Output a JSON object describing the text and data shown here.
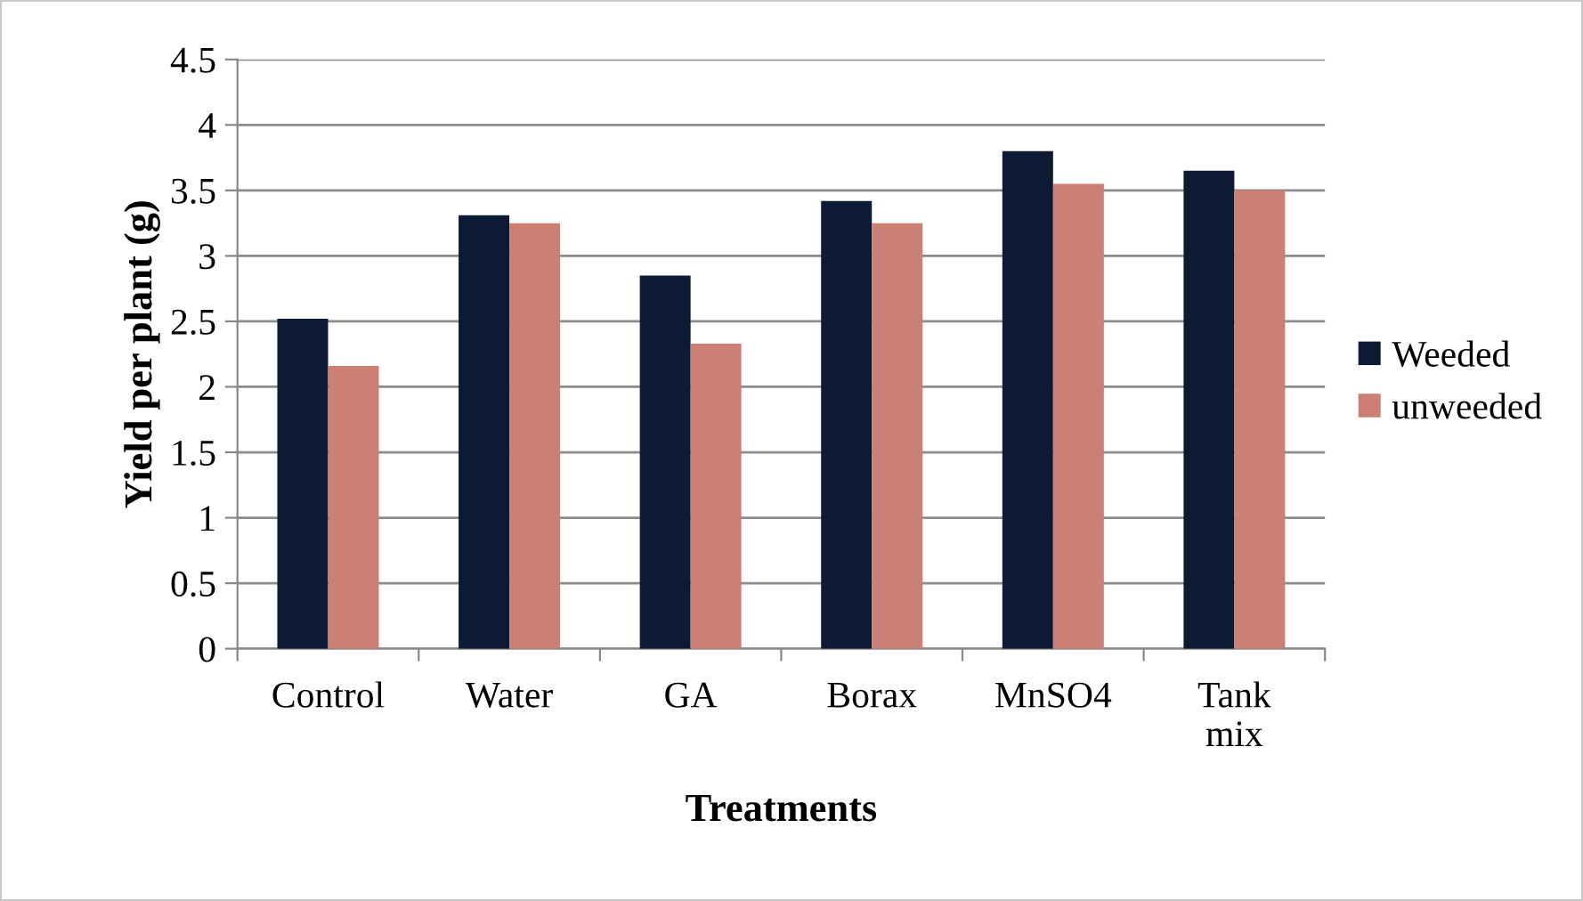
{
  "chart_data": {
    "type": "bar",
    "xlabel": "Treatments",
    "ylabel": "Yield per plant (g)",
    "categories": [
      "Control",
      "Water",
      "GA",
      "Borax",
      "MnSO4",
      "Tank mix"
    ],
    "series": [
      {
        "name": "Weeded",
        "color": "#0d1a33",
        "values": [
          2.52,
          3.31,
          2.85,
          3.42,
          3.8,
          3.65
        ]
      },
      {
        "name": "unweeded",
        "color": "#cc7f74",
        "values": [
          2.16,
          3.25,
          2.33,
          3.25,
          3.55,
          3.5
        ]
      }
    ],
    "ylim": [
      0,
      4.5
    ],
    "yticks": [
      0,
      0.5,
      1,
      1.5,
      2,
      2.5,
      3,
      3.5,
      4,
      4.5
    ],
    "grid": "y",
    "legend": "right"
  }
}
